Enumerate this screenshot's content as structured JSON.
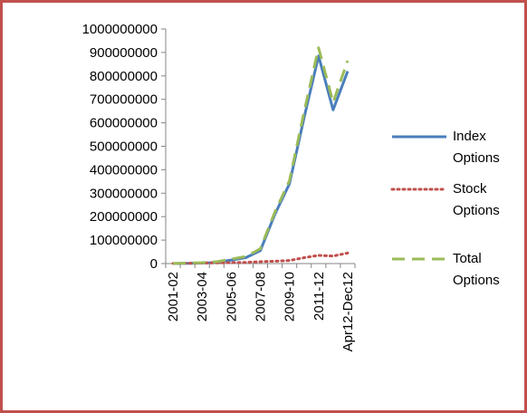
{
  "chart_data": {
    "type": "line",
    "categories": [
      "2001-02",
      null,
      "2003-04",
      null,
      "2005-06",
      null,
      "2007-08",
      null,
      "2009-10",
      null,
      "2011-12",
      null,
      "Apr12-Dec12"
    ],
    "series": [
      {
        "name": "Index Options",
        "color": "#4a7ebb",
        "style": "solid",
        "values": [
          200000,
          1000000,
          2000000,
          5000000,
          15000000,
          25000000,
          55000000,
          210000000,
          340000000,
          620000000,
          885000000,
          655000000,
          820000000
        ]
      },
      {
        "name": "Stock Options",
        "color": "#c0504d",
        "style": "dotted",
        "values": [
          500000,
          1000000,
          2000000,
          3000000,
          4000000,
          5000000,
          8000000,
          10000000,
          13000000,
          25000000,
          35000000,
          32000000,
          45000000
        ]
      },
      {
        "name": "Total Options",
        "color": "#9bbb59",
        "style": "dashed",
        "values": [
          700000,
          2000000,
          4000000,
          8000000,
          19000000,
          30000000,
          63000000,
          220000000,
          353000000,
          645000000,
          920000000,
          687000000,
          865000000
        ]
      }
    ],
    "ylim": [
      0,
      1000000000
    ],
    "yticks": [
      0,
      100000000,
      200000000,
      300000000,
      400000000,
      500000000,
      600000000,
      700000000,
      800000000,
      900000000,
      1000000000
    ],
    "legend": "right"
  }
}
